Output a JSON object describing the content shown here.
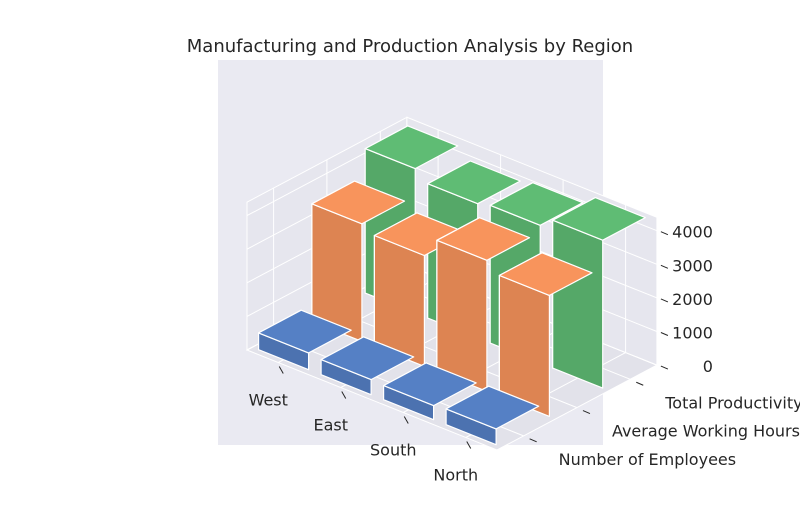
{
  "chart_data": {
    "type": "bar3d",
    "title": "Manufacturing and Production Analysis by Region",
    "categories": [
      "West",
      "East",
      "South",
      "North"
    ],
    "series": [
      {
        "name": "Number of Employees",
        "values": [
          500,
          450,
          420,
          470
        ],
        "color": "#4c72b0"
      },
      {
        "name": "Average Working Hours",
        "values": [
          3500,
          3300,
          3900,
          3600
        ],
        "color": "#dd8452"
      },
      {
        "name": "Total Productivity (Units)",
        "values": [
          4300,
          4000,
          4100,
          4400
        ],
        "color": "#55a868"
      }
    ],
    "z_ticks": [
      "0",
      "1000",
      "2000",
      "3000",
      "4000"
    ],
    "zlim": [
      0,
      4400
    ],
    "grid": true
  }
}
